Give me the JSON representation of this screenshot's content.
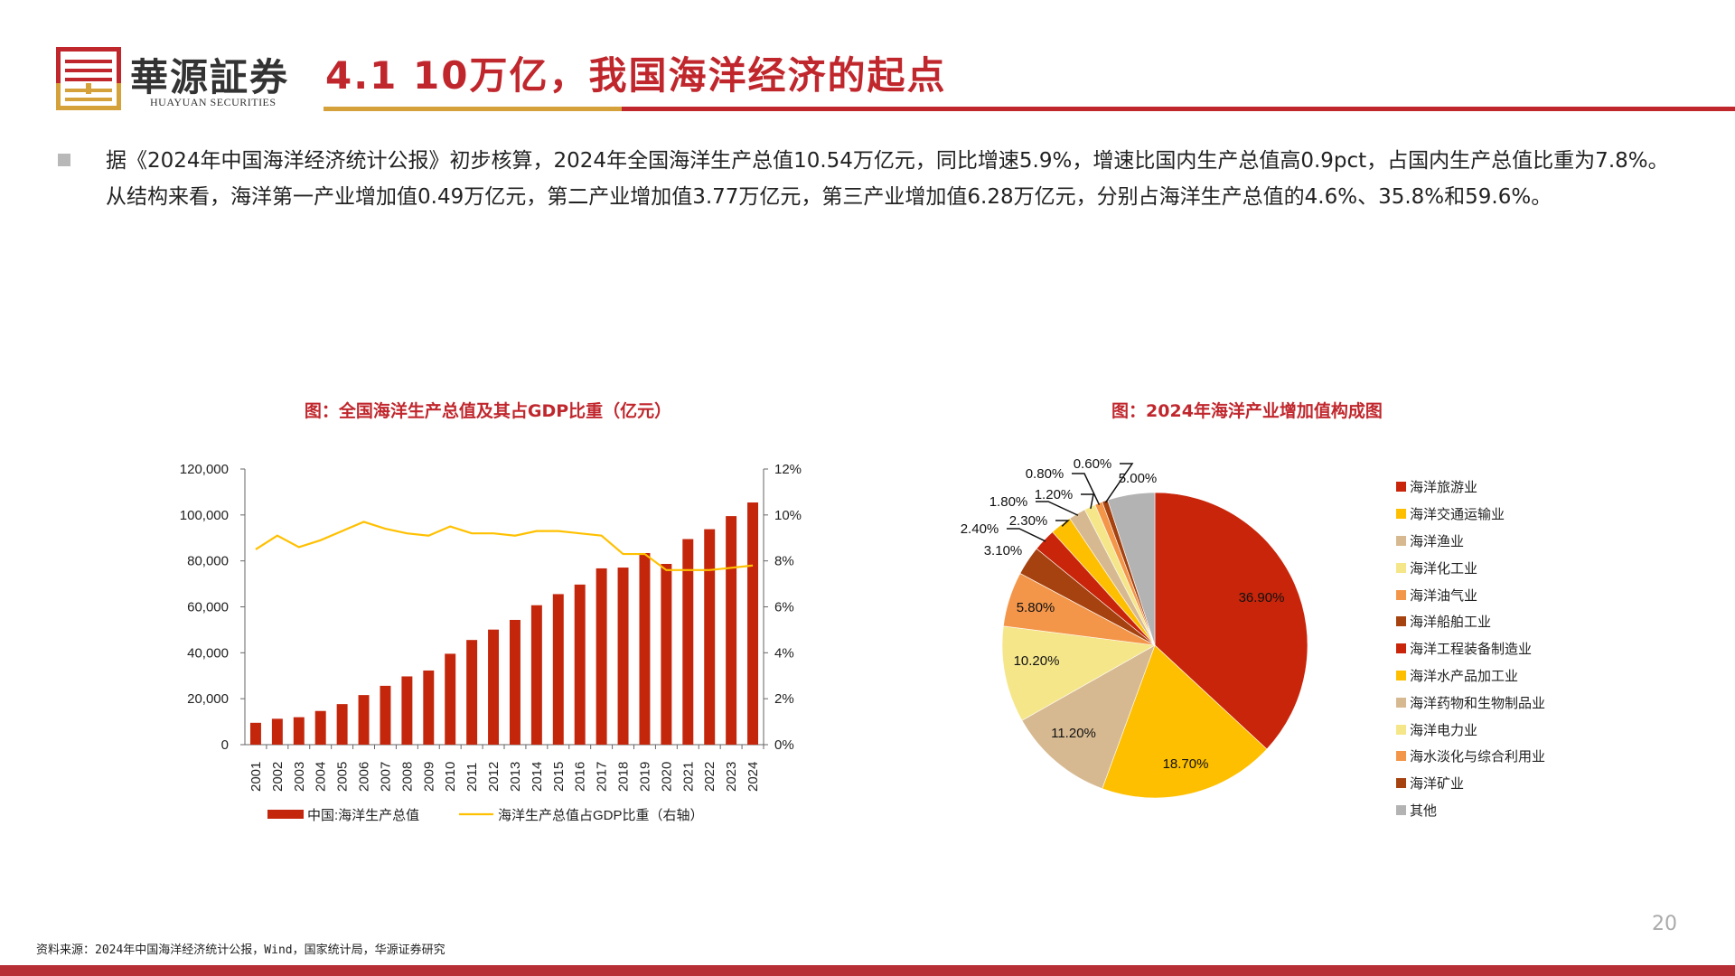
{
  "header": {
    "brand_cn": "華源証券",
    "brand_en": "HUAYUAN SECURITIES",
    "title": "4.1 10万亿，我国海洋经济的起点"
  },
  "body": {
    "paragraph": "据《2024年中国海洋经济统计公报》初步核算，2024年全国海洋生产总值10.54万亿元，同比增速5.9%，增速比国内生产总值高0.9pct，占国内生产总值比重为7.8%。从结构来看，海洋第一产业增加值0.49万亿元，第二产业增加值3.77万亿元，第三产业增加值6.28万亿元，分别占海洋生产总值的4.6%、35.8%和59.6%。"
  },
  "colors": {
    "brand_red": "#c0272d",
    "brand_gold": "#d5a13a",
    "bar": "#c4260c",
    "line": "#ffc000"
  },
  "chart_data": [
    {
      "type": "bar",
      "title": "图：全国海洋生产总值及其占GDP比重（亿元）",
      "categories": [
        "2001",
        "2002",
        "2003",
        "2004",
        "2005",
        "2006",
        "2007",
        "2008",
        "2009",
        "2010",
        "2011",
        "2012",
        "2013",
        "2014",
        "2015",
        "2016",
        "2017",
        "2018",
        "2019",
        "2020",
        "2021",
        "2022",
        "2023",
        "2024"
      ],
      "series": [
        {
          "name": "中国:海洋生产总值",
          "type": "bar",
          "axis": "left",
          "values": [
            9518,
            11270,
            11952,
            14662,
            17655,
            21592,
            25618,
            29718,
            32277,
            39572,
            45570,
            50087,
            54313,
            60699,
            65534,
            69694,
            76749,
            77095,
            83415,
            78688,
            89500,
            93800,
            99500,
            105438
          ]
        },
        {
          "name": "海洋生产总值占GDP比重（右轴）",
          "type": "line",
          "axis": "right",
          "values": [
            8.5,
            9.1,
            8.6,
            8.9,
            9.3,
            9.7,
            9.4,
            9.2,
            9.1,
            9.5,
            9.2,
            9.2,
            9.1,
            9.3,
            9.3,
            9.2,
            9.1,
            8.3,
            8.3,
            7.6,
            7.6,
            7.6,
            7.7,
            7.8
          ]
        }
      ],
      "ylim_left": [
        0,
        120000
      ],
      "yticks_left": [
        "0",
        "20,000",
        "40,000",
        "60,000",
        "80,000",
        "100,000",
        "120,000"
      ],
      "ylim_right": [
        0,
        12
      ],
      "yticks_right": [
        "0%",
        "2%",
        "4%",
        "6%",
        "8%",
        "10%",
        "12%"
      ],
      "legend": "bottom",
      "grid": false
    },
    {
      "type": "pie",
      "title": "图：2024年海洋产业增加值构成图",
      "slices": [
        {
          "name": "海洋旅游业",
          "value": 36.9,
          "label": "36.90%",
          "color": "#c8250a"
        },
        {
          "name": "海洋交通运输业",
          "value": 18.7,
          "label": "18.70%",
          "color": "#fdbf00"
        },
        {
          "name": "海洋渔业",
          "value": 11.2,
          "label": "11.20%",
          "color": "#d7b991"
        },
        {
          "name": "海洋化工业",
          "value": 10.2,
          "label": "10.20%",
          "color": "#f5e68a"
        },
        {
          "name": "海洋油气业",
          "value": 5.8,
          "label": "5.80%",
          "color": "#f4964a"
        },
        {
          "name": "海洋船舶工业",
          "value": 3.1,
          "label": "3.10%",
          "color": "#a5420f"
        },
        {
          "name": "海洋工程装备制造业",
          "value": 2.4,
          "label": "2.40%",
          "color": "#c8250a"
        },
        {
          "name": "海洋水产品加工业",
          "value": 2.3,
          "label": "2.30%",
          "color": "#fdbf00"
        },
        {
          "name": "海洋药物和生物制品业",
          "value": 1.8,
          "label": "1.80%",
          "color": "#d7b991"
        },
        {
          "name": "海洋电力业",
          "value": 1.2,
          "label": "1.20%",
          "color": "#f5e68a"
        },
        {
          "name": "海水淡化与综合利用业",
          "value": 0.8,
          "label": "0.80%",
          "color": "#f4964a"
        },
        {
          "name": "海洋矿业",
          "value": 0.6,
          "label": "0.60%",
          "color": "#a5420f"
        },
        {
          "name": "其他",
          "value": 5.0,
          "label": "5.00%",
          "color": "#b3b3b3"
        }
      ],
      "legend": "right"
    }
  ],
  "footer": {
    "source": "资料来源：2024年中国海洋经济统计公报，Wind，国家统计局，华源证券研究",
    "page_number": "20"
  }
}
